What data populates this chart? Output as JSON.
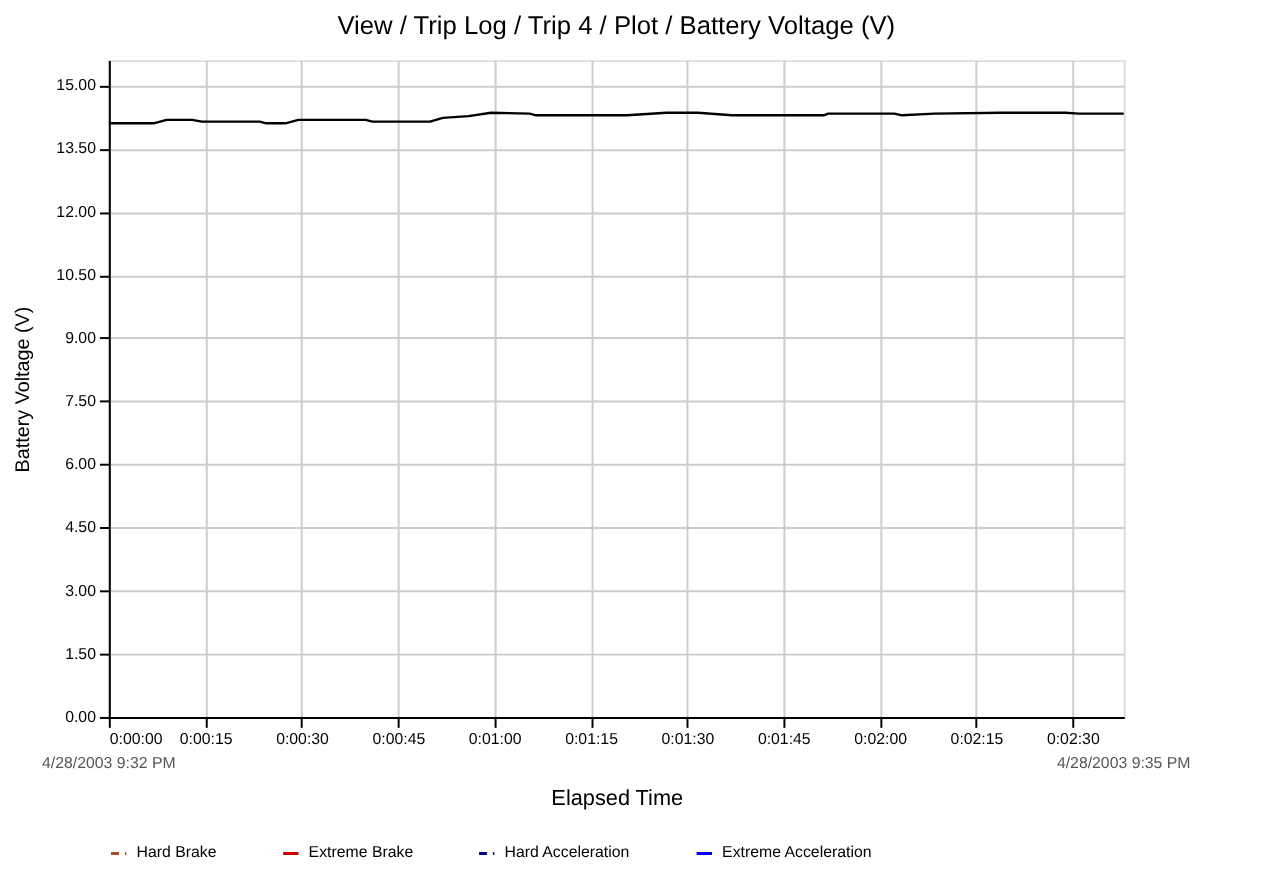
{
  "chart_data": {
    "type": "line",
    "title": "View / Trip Log / Trip 4 / Plot / Battery Voltage (V)",
    "xlabel": "Elapsed Time",
    "ylabel": "Battery Voltage (V)",
    "annotations": [
      "4/28/2003 9:32 PM",
      "4/28/2003 9:35 PM"
    ],
    "x": [
      0,
      7,
      9,
      13,
      14.5,
      23.5,
      24.5,
      27.5,
      29.5,
      40,
      41,
      50,
      52,
      56,
      59.5,
      65.5,
      66.5,
      80.7,
      86.8,
      91.7,
      97,
      111.3,
      112,
      122.3,
      123.5,
      128.5,
      138.9,
      148.9,
      151,
      158
    ],
    "series": [
      {
        "color": "#000000",
        "values": [
          14.1,
          14.1,
          14.18,
          14.18,
          14.14,
          14.14,
          14.1,
          14.1,
          14.18,
          14.18,
          14.14,
          14.14,
          14.23,
          14.27,
          14.35,
          14.33,
          14.29,
          14.29,
          14.35,
          14.35,
          14.29,
          14.29,
          14.33,
          14.33,
          14.29,
          14.33,
          14.35,
          14.35,
          14.33,
          14.33
        ]
      },
      {
        "name": "Hard Brake",
        "color": "#a0522d",
        "line_style": "dashed",
        "values": [
          null,
          null,
          null,
          null,
          null,
          null,
          null,
          null,
          null,
          null,
          null,
          null,
          null,
          null,
          null,
          null,
          null,
          null,
          null,
          null,
          null,
          null,
          null,
          null,
          null,
          null,
          null,
          null,
          null,
          null
        ]
      },
      {
        "name": "Extreme Brake",
        "color": "#cc0000",
        "line_style": "solid",
        "values": [
          null,
          null,
          null,
          null,
          null,
          null,
          null,
          null,
          null,
          null,
          null,
          null,
          null,
          null,
          null,
          null,
          null,
          null,
          null,
          null,
          null,
          null,
          null,
          null,
          null,
          null,
          null,
          null,
          null,
          null
        ]
      },
      {
        "name": "Hard Acceleration",
        "color": "#000080",
        "line_style": "dashed",
        "values": [
          null,
          null,
          null,
          null,
          null,
          null,
          null,
          null,
          null,
          null,
          null,
          null,
          null,
          null,
          null,
          null,
          null,
          null,
          null,
          null,
          null,
          null,
          null,
          null,
          null,
          null,
          null,
          null,
          null,
          null
        ]
      },
      {
        "name": "Extreme Acceleration",
        "color": "#0000ff",
        "line_style": "solid",
        "values": [
          null,
          null,
          null,
          null,
          null,
          null,
          null,
          null,
          null,
          null,
          null,
          null,
          null,
          null,
          null,
          null,
          null,
          null,
          null,
          null,
          null,
          null,
          null,
          null,
          null,
          null,
          null,
          null,
          null,
          null
        ]
      }
    ],
    "xlim": [
      0,
      158
    ],
    "xticks": [
      {
        "value": 0,
        "label": "0:00:00"
      },
      {
        "value": 15,
        "label": "0:00:15"
      },
      {
        "value": 30,
        "label": "0:00:30"
      },
      {
        "value": 45,
        "label": "0:00:45"
      },
      {
        "value": 60,
        "label": "0:01:00"
      },
      {
        "value": 75,
        "label": "0:01:15"
      },
      {
        "value": 90,
        "label": "0:01:30"
      },
      {
        "value": 105,
        "label": "0:01:45"
      },
      {
        "value": 120,
        "label": "0:02:00"
      },
      {
        "value": 135,
        "label": "0:02:15"
      },
      {
        "value": 150,
        "label": "0:02:30"
      }
    ],
    "ylim": [
      0,
      15.6
    ],
    "yticks": [
      {
        "value": 0,
        "label": "0.00"
      },
      {
        "value": 1.5,
        "label": "1.50"
      },
      {
        "value": 3,
        "label": "3.00"
      },
      {
        "value": 4.5,
        "label": "4.50"
      },
      {
        "value": 6,
        "label": "6.00"
      },
      {
        "value": 7.5,
        "label": "7.50"
      },
      {
        "value": 9,
        "label": "9.00"
      },
      {
        "value": 10.5,
        "label": "10.50"
      },
      {
        "value": 12,
        "label": "12.00"
      },
      {
        "value": 13.5,
        "label": "13.50"
      },
      {
        "value": 15,
        "label": "15.00"
      }
    ],
    "grid": true,
    "legend": "bottom",
    "marker": "none",
    "line_style": "solid"
  }
}
